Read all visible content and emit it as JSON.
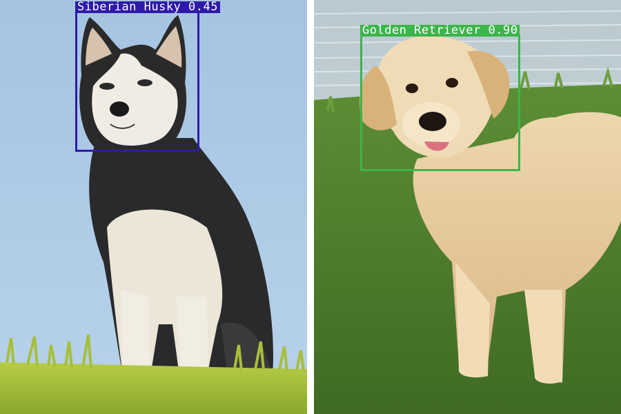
{
  "image_panels": [
    {
      "id": "husky",
      "scene": "siberian husky sitting on grass against blue sky",
      "detection": {
        "label": "Siberian Husky",
        "score": "0.45"
      },
      "colors": {
        "box": "#2e1aa8",
        "label_bg": "#2e1aa8",
        "label_text": "#ffffff",
        "sky": "#a9c8e4",
        "grass": "#a8c23a"
      }
    },
    {
      "id": "golden",
      "scene": "golden retriever standing on grass in front of water",
      "detection": {
        "label": "Golden Retriever",
        "score": "0.90"
      },
      "colors": {
        "box": "#3cb54a",
        "label_bg": "#3cb54a",
        "label_text": "#ffffff",
        "water": "#c9d6da",
        "grass": "#4e7d2d"
      }
    }
  ]
}
